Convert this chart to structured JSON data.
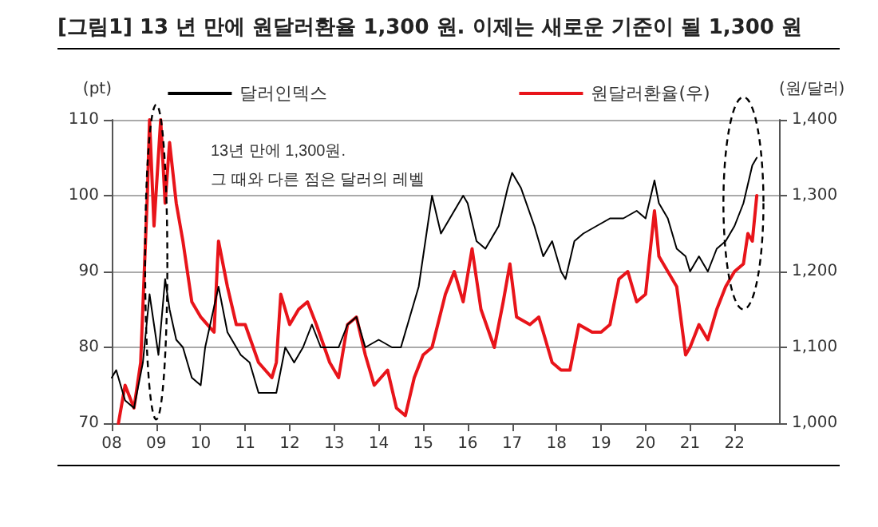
{
  "chart_data": {
    "type": "line",
    "title": "[그림1] 13 년 만에 원달러환율 1,300 원. 이제는 새로운 기준이 될 1,300 원",
    "ylabel": "(pt)",
    "y2label": "(원/달러)",
    "annotations": [
      "13년 만에 1,300원.",
      "그 때와 다른 점은 달러의 레벨"
    ],
    "xlim": [
      2008,
      2023
    ],
    "xticks": [
      {
        "value": 2008,
        "label": "08"
      },
      {
        "value": 2009,
        "label": "09"
      },
      {
        "value": 2010,
        "label": "10"
      },
      {
        "value": 2011,
        "label": "11"
      },
      {
        "value": 2012,
        "label": "12"
      },
      {
        "value": 2013,
        "label": "13"
      },
      {
        "value": 2014,
        "label": "14"
      },
      {
        "value": 2015,
        "label": "15"
      },
      {
        "value": 2016,
        "label": "16"
      },
      {
        "value": 2017,
        "label": "17"
      },
      {
        "value": 2018,
        "label": "18"
      },
      {
        "value": 2019,
        "label": "19"
      },
      {
        "value": 2020,
        "label": "20"
      },
      {
        "value": 2021,
        "label": "21"
      },
      {
        "value": 2022,
        "label": "22"
      }
    ],
    "ylim": [
      70,
      110
    ],
    "yticks": [
      70,
      80,
      90,
      100,
      110
    ],
    "y2lim": [
      1000,
      1400
    ],
    "y2ticks": [
      {
        "value": 1000,
        "label": "1,000"
      },
      {
        "value": 1100,
        "label": "1,100"
      },
      {
        "value": 1200,
        "label": "1,200"
      },
      {
        "value": 1300,
        "label": "1,300"
      },
      {
        "value": 1400,
        "label": "1,400"
      }
    ],
    "grid": "y",
    "legend": "top",
    "marker": "none",
    "series": [
      {
        "name": "달러인덱스",
        "color": "#000000",
        "x": [
          2008.0,
          2008.1,
          2008.3,
          2008.5,
          2008.7,
          2008.85,
          2008.95,
          2009.05,
          2009.2,
          2009.3,
          2009.45,
          2009.6,
          2009.8,
          2010.0,
          2010.1,
          2010.4,
          2010.6,
          2010.9,
          2011.1,
          2011.3,
          2011.5,
          2011.7,
          2011.9,
          2012.1,
          2012.3,
          2012.5,
          2012.7,
          2012.9,
          2013.1,
          2013.3,
          2013.5,
          2013.7,
          2014.0,
          2014.3,
          2014.5,
          2014.7,
          2014.9,
          2015.1,
          2015.2,
          2015.4,
          2015.6,
          2015.9,
          2016.0,
          2016.2,
          2016.4,
          2016.7,
          2016.9,
          2017.0,
          2017.2,
          2017.5,
          2017.7,
          2017.9,
          2018.1,
          2018.2,
          2018.4,
          2018.6,
          2018.9,
          2019.2,
          2019.5,
          2019.8,
          2020.0,
          2020.2,
          2020.3,
          2020.5,
          2020.7,
          2020.9,
          2021.0,
          2021.2,
          2021.4,
          2021.6,
          2021.8,
          2022.0,
          2022.2,
          2022.4,
          2022.5
        ],
        "values": [
          76,
          77,
          73,
          72,
          78,
          87,
          83,
          79,
          89,
          85,
          81,
          80,
          76,
          75,
          80,
          88,
          82,
          79,
          78,
          74,
          74,
          74,
          80,
          78,
          80,
          83,
          80,
          80,
          80,
          83,
          84,
          80,
          81,
          80,
          80,
          84,
          88,
          96,
          100,
          95,
          97,
          100,
          99,
          94,
          93,
          96,
          101,
          103,
          101,
          96,
          92,
          94,
          90,
          89,
          94,
          95,
          96,
          97,
          97,
          98,
          97,
          102,
          99,
          97,
          93,
          92,
          90,
          92,
          90,
          93,
          94,
          96,
          99,
          104,
          105
        ]
      },
      {
        "name": "원달러환율(우)",
        "color": "#e8141a",
        "axis": "y2",
        "x": [
          2008.15,
          2008.3,
          2008.5,
          2008.65,
          2008.8,
          2008.85,
          2008.95,
          2009.1,
          2009.2,
          2009.3,
          2009.45,
          2009.6,
          2009.8,
          2010.0,
          2010.3,
          2010.4,
          2010.6,
          2010.8,
          2011.0,
          2011.3,
          2011.6,
          2011.7,
          2011.8,
          2012.0,
          2012.2,
          2012.4,
          2012.6,
          2012.9,
          2013.1,
          2013.3,
          2013.5,
          2013.7,
          2013.9,
          2014.2,
          2014.4,
          2014.6,
          2014.8,
          2015.0,
          2015.2,
          2015.5,
          2015.7,
          2015.9,
          2016.1,
          2016.3,
          2016.6,
          2016.8,
          2016.95,
          2017.1,
          2017.4,
          2017.6,
          2017.9,
          2018.1,
          2018.3,
          2018.5,
          2018.8,
          2019.0,
          2019.2,
          2019.4,
          2019.6,
          2019.8,
          2020.0,
          2020.2,
          2020.3,
          2020.5,
          2020.7,
          2020.9,
          2021.0,
          2021.2,
          2021.4,
          2021.6,
          2021.8,
          2022.0,
          2022.2,
          2022.3,
          2022.4,
          2022.5
        ],
        "values": [
          1000,
          1050,
          1020,
          1080,
          1300,
          1400,
          1260,
          1400,
          1290,
          1370,
          1290,
          1240,
          1160,
          1140,
          1120,
          1240,
          1180,
          1130,
          1130,
          1080,
          1060,
          1080,
          1170,
          1130,
          1150,
          1160,
          1130,
          1080,
          1060,
          1130,
          1140,
          1090,
          1050,
          1070,
          1020,
          1010,
          1060,
          1090,
          1100,
          1170,
          1200,
          1160,
          1230,
          1150,
          1100,
          1160,
          1210,
          1140,
          1130,
          1140,
          1080,
          1070,
          1070,
          1130,
          1120,
          1120,
          1130,
          1190,
          1200,
          1160,
          1170,
          1280,
          1220,
          1200,
          1180,
          1090,
          1100,
          1130,
          1110,
          1150,
          1180,
          1200,
          1210,
          1250,
          1240,
          1300
        ]
      }
    ]
  }
}
